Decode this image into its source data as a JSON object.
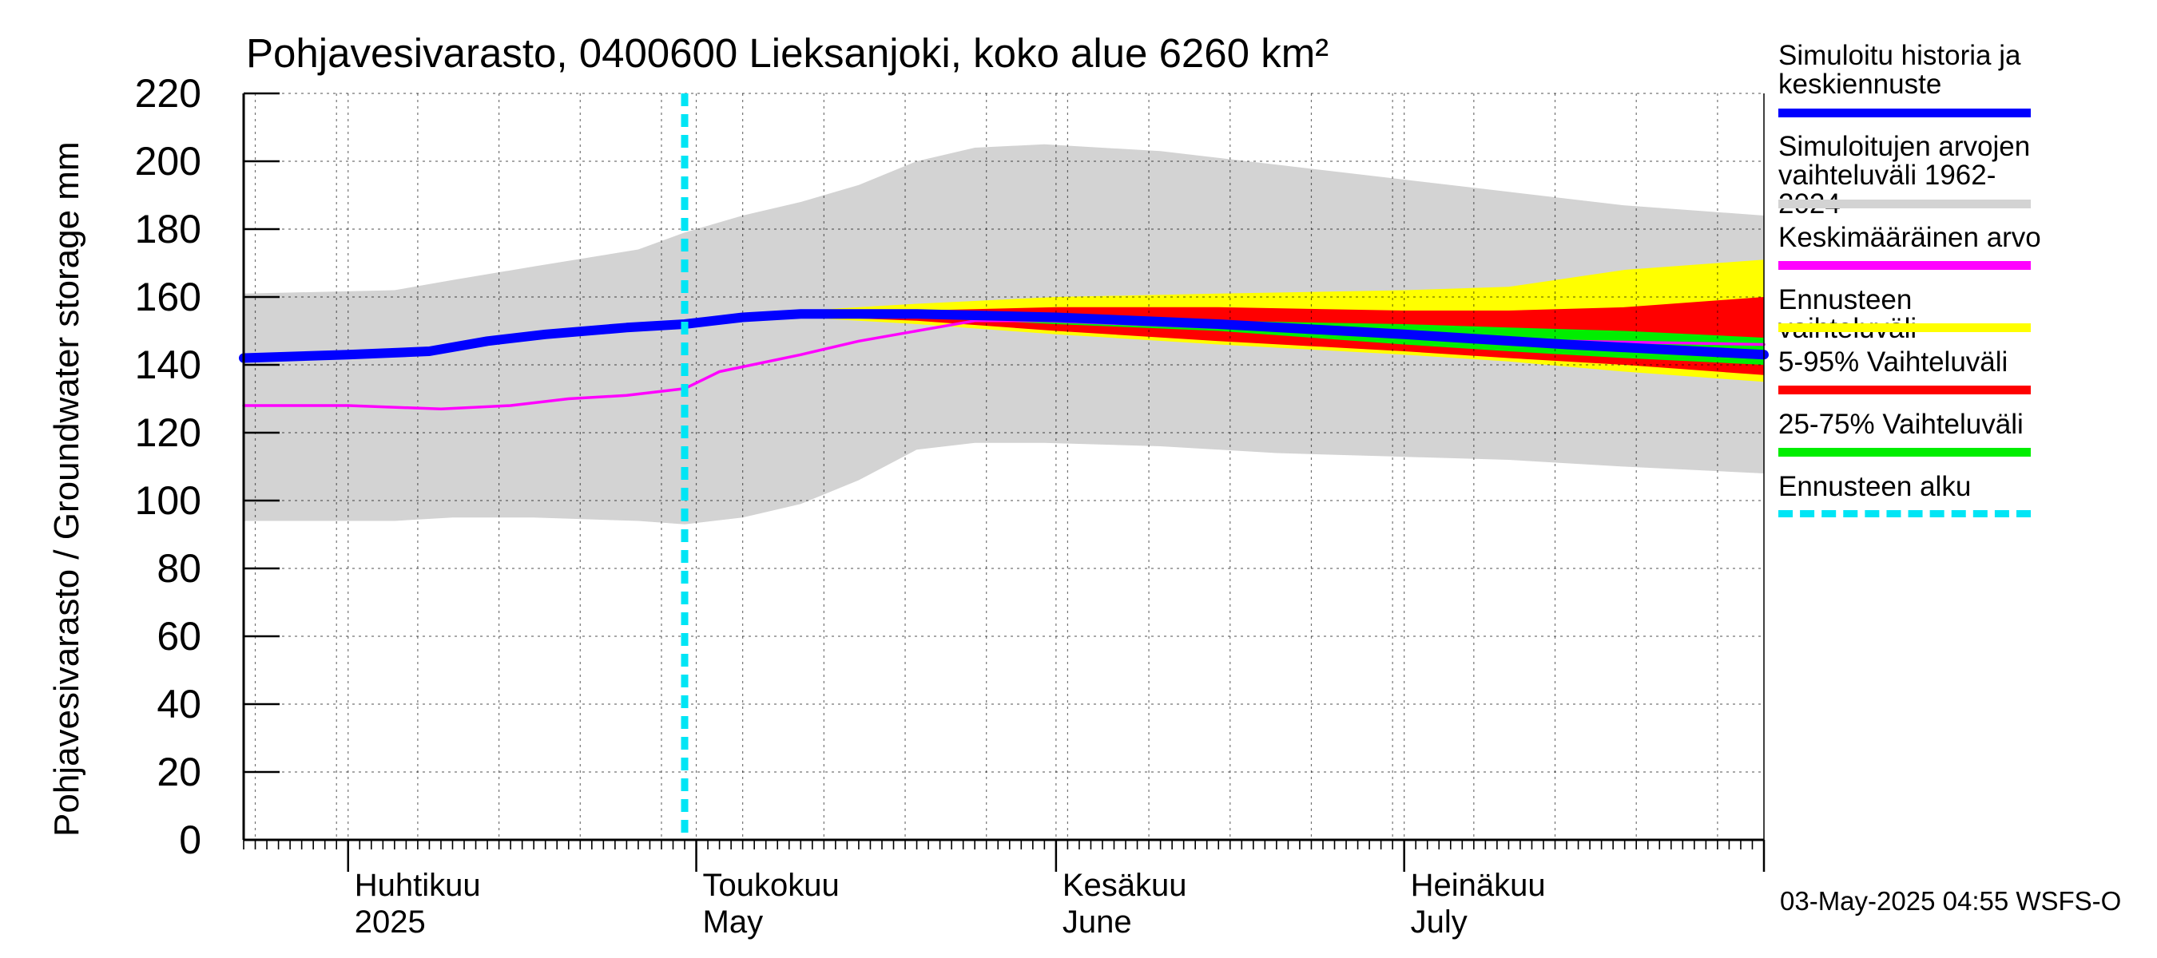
{
  "chart_data": {
    "type": "area",
    "title": "Pohjavesivarasto, 0400600 Lieksanjoki, koko alue 6260 km²",
    "ylabel": "Pohjavesivarasto / Groundwater storage   mm",
    "ylim": [
      0,
      220
    ],
    "yticks": [
      "0",
      "20",
      "40",
      "60",
      "80",
      "100",
      "120",
      "140",
      "160",
      "180",
      "200",
      "220"
    ],
    "xlim": [
      "2025-03-23",
      "2025-08-01"
    ],
    "month_labels": [
      {
        "fi": "Huhtikuu",
        "en": "2025",
        "date": "2025-04-01"
      },
      {
        "fi": "Toukokuu",
        "en": "May",
        "date": "2025-05-01"
      },
      {
        "fi": "Kesäkuu",
        "en": "June",
        "date": "2025-06-01"
      },
      {
        "fi": "Heinäkuu",
        "en": "July",
        "date": "2025-07-01"
      }
    ],
    "forecast_start": "2025-04-30",
    "grid": true,
    "legend_position": "right",
    "series": [
      {
        "name": "Simuloitujen arvojen vaihteluväli 1962-2024",
        "kind": "band",
        "color": "#d3d3d3",
        "x": [
          "2025-03-23",
          "2025-04-05",
          "2025-04-10",
          "2025-04-17",
          "2025-04-26",
          "2025-04-30",
          "2025-05-05",
          "2025-05-10",
          "2025-05-15",
          "2025-05-20",
          "2025-05-25",
          "2025-05-31",
          "2025-06-10",
          "2025-06-20",
          "2025-06-30",
          "2025-07-10",
          "2025-07-20",
          "2025-08-01"
        ],
        "upper": [
          161,
          162,
          165,
          169,
          174,
          179,
          184,
          188,
          193,
          200,
          204,
          205,
          203,
          199,
          195,
          191,
          187,
          184
        ],
        "lower": [
          94,
          94,
          95,
          95,
          94,
          93,
          95,
          99,
          106,
          115,
          117,
          117,
          116,
          114,
          113,
          112,
          110,
          108
        ]
      },
      {
        "name": "Ennusteen vaihteluväli",
        "kind": "band",
        "color": "#ffff00",
        "x": [
          "2025-05-05",
          "2025-05-20",
          "2025-06-01",
          "2025-06-15",
          "2025-07-01",
          "2025-07-10",
          "2025-07-20",
          "2025-08-01"
        ],
        "upper": [
          155,
          158,
          160,
          161,
          162,
          163,
          168,
          171
        ],
        "lower": [
          155,
          152,
          149,
          146,
          143,
          141,
          138,
          135
        ]
      },
      {
        "name": "5-95% Vaihteluväli",
        "kind": "band",
        "color": "#ff0000",
        "x": [
          "2025-05-05",
          "2025-05-20",
          "2025-06-01",
          "2025-06-15",
          "2025-07-01",
          "2025-07-10",
          "2025-07-20",
          "2025-08-01"
        ],
        "upper": [
          155,
          156,
          157,
          157,
          156,
          156,
          157,
          160
        ],
        "lower": [
          155,
          153,
          150,
          147,
          144,
          142,
          140,
          137
        ]
      },
      {
        "name": "25-75% Vaihteluväli",
        "kind": "band",
        "color": "#00ee00",
        "x": [
          "2025-05-05",
          "2025-05-20",
          "2025-06-01",
          "2025-06-15",
          "2025-07-01",
          "2025-07-10",
          "2025-07-20",
          "2025-08-01"
        ],
        "upper": [
          155,
          155,
          154,
          153,
          152,
          151,
          150,
          148
        ],
        "lower": [
          155,
          154,
          152,
          150,
          146,
          144,
          142,
          140
        ]
      },
      {
        "name": "Keskimääräinen arvo",
        "kind": "line",
        "color": "#ff00ff",
        "x": [
          "2025-03-23",
          "2025-04-01",
          "2025-04-09",
          "2025-04-15",
          "2025-04-20",
          "2025-04-25",
          "2025-04-30",
          "2025-05-03",
          "2025-05-10",
          "2025-05-15",
          "2025-05-20",
          "2025-05-25",
          "2025-05-31",
          "2025-06-15",
          "2025-07-01",
          "2025-07-15",
          "2025-08-01"
        ],
        "y": [
          128,
          128,
          127,
          128,
          130,
          131,
          133,
          138,
          143,
          147,
          150,
          153,
          153,
          151,
          149,
          147,
          146
        ]
      },
      {
        "name": "Simuloitu historia ja keskiennuste",
        "kind": "line",
        "color": "#0000ff",
        "x": [
          "2025-03-23",
          "2025-04-01",
          "2025-04-08",
          "2025-04-13",
          "2025-04-18",
          "2025-04-25",
          "2025-04-30",
          "2025-05-05",
          "2025-05-10",
          "2025-05-20",
          "2025-06-01",
          "2025-06-15",
          "2025-07-01",
          "2025-07-15",
          "2025-08-01"
        ],
        "y": [
          142,
          143,
          144,
          147,
          149,
          151,
          152,
          154,
          155,
          155,
          154,
          152,
          149,
          146,
          143
        ]
      }
    ]
  },
  "legend": {
    "items": [
      {
        "label": "Simuloitu historia ja\nkeskiennuste",
        "color": "#0000ff",
        "style": "solid"
      },
      {
        "label": "Simuloitujen arvojen\nvaihteluväli 1962-2024",
        "color": "#d3d3d3",
        "style": "solid"
      },
      {
        "label": "Keskimääräinen arvo",
        "color": "#ff00ff",
        "style": "solid"
      },
      {
        "label": "Ennusteen vaihteluväli",
        "color": "#ffff00",
        "style": "solid"
      },
      {
        "label": "5-95% Vaihteluväli",
        "color": "#ff0000",
        "style": "solid"
      },
      {
        "label": "25-75% Vaihteluväli",
        "color": "#00ee00",
        "style": "solid"
      },
      {
        "label": "Ennusteen alku",
        "color": "#00e5f5",
        "style": "dashed"
      }
    ]
  },
  "timestamp": "03-May-2025 04:55 WSFS-O"
}
